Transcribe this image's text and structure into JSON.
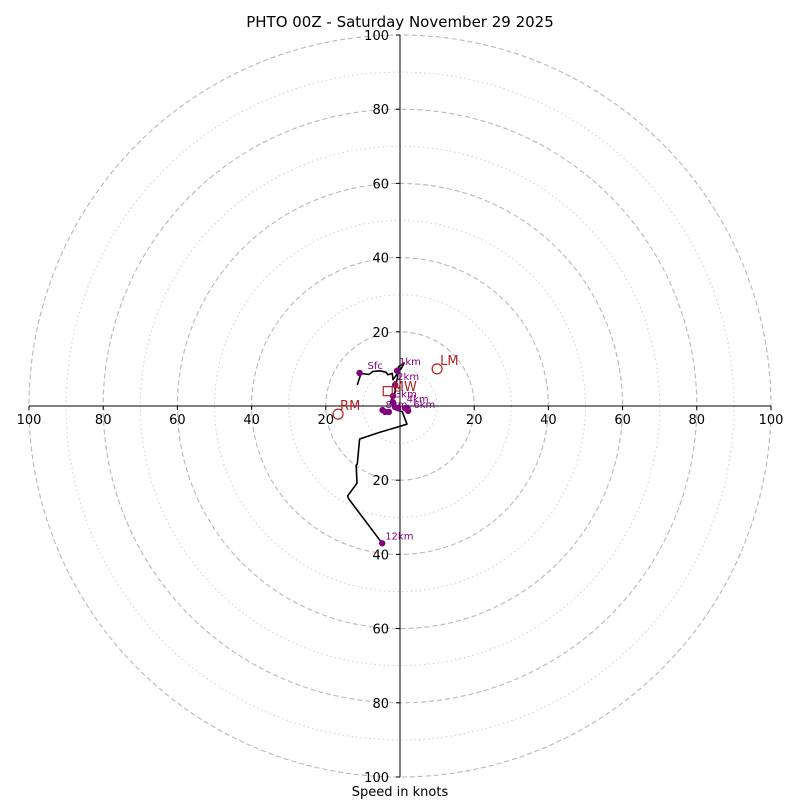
{
  "chart_data": {
    "type": "hodograph",
    "title": "PHTO 00Z - Saturday November 29 2025",
    "xlabel": "Speed in knots",
    "ylabel": "",
    "xlim": [
      -100,
      100
    ],
    "ylim": [
      -100,
      100
    ],
    "rings": {
      "major": [
        20,
        40,
        60,
        80,
        100
      ],
      "minor": [
        10,
        30,
        50,
        70,
        90
      ],
      "major_style": "dashed",
      "minor_style": "dotted"
    },
    "x_ticks": [
      {
        "value": -100,
        "label": "100"
      },
      {
        "value": -80,
        "label": "80"
      },
      {
        "value": -60,
        "label": "60"
      },
      {
        "value": -40,
        "label": "40"
      },
      {
        "value": -20,
        "label": "20"
      },
      {
        "value": 20,
        "label": "20"
      },
      {
        "value": 40,
        "label": "40"
      },
      {
        "value": 60,
        "label": "60"
      },
      {
        "value": 80,
        "label": "80"
      },
      {
        "value": 100,
        "label": "100"
      }
    ],
    "y_ticks": [
      {
        "value": 100,
        "label": "100"
      },
      {
        "value": 80,
        "label": "80"
      },
      {
        "value": 60,
        "label": "60"
      },
      {
        "value": 40,
        "label": "40"
      },
      {
        "value": 20,
        "label": "20"
      },
      {
        "value": -20,
        "label": "20"
      },
      {
        "value": -40,
        "label": "40"
      },
      {
        "value": -60,
        "label": "60"
      },
      {
        "value": -80,
        "label": "80"
      },
      {
        "value": -100,
        "label": "100"
      }
    ],
    "wind_trace": {
      "color": "#000000",
      "points": [
        [
          -11.5,
          5.7
        ],
        [
          -10.5,
          8.8
        ],
        [
          -8.4,
          8.5
        ],
        [
          -7.3,
          9.3
        ],
        [
          -5.4,
          9.5
        ],
        [
          -3.8,
          9.1
        ],
        [
          -3.2,
          8.4
        ],
        [
          -2.1,
          8.8
        ],
        [
          -1.9,
          7.1
        ],
        [
          0.5,
          10.4
        ],
        [
          1.1,
          11.6
        ],
        [
          -0.4,
          10.6
        ],
        [
          -0.7,
          7.5
        ],
        [
          -1.1,
          5.9
        ],
        [
          -1.3,
          4.0
        ],
        [
          -1.6,
          2.5
        ],
        [
          -2.4,
          1.6
        ],
        [
          -1.8,
          0.9
        ],
        [
          -1.9,
          -0.6
        ],
        [
          -0.8,
          -1.1
        ],
        [
          0.6,
          -1.5
        ],
        [
          1.9,
          -4.9
        ],
        [
          -2.1,
          -6.1
        ],
        [
          -5.2,
          -7.0
        ],
        [
          -10.9,
          -8.9
        ],
        [
          -11.5,
          -15.6
        ],
        [
          -11.8,
          -16.0
        ],
        [
          -11.6,
          -20.8
        ],
        [
          -14.1,
          -24.2
        ],
        [
          -13.9,
          -24.9
        ],
        [
          -4.8,
          -37.0
        ]
      ]
    },
    "height_markers": {
      "color": "#800080",
      "points": [
        {
          "u": -10.9,
          "v": 8.9,
          "label": "Sfc",
          "label_dx": 8,
          "label_dy": -4
        },
        {
          "u": -0.8,
          "v": 9.5,
          "label": "1km",
          "label_dx": 2,
          "label_dy": -6
        },
        {
          "u": -1.3,
          "v": 5.7,
          "label": "2km",
          "label_dx": 2,
          "label_dy": -5
        },
        {
          "u": -1.9,
          "v": 2.7,
          "label": "",
          "label_dx": 0,
          "label_dy": 0
        },
        {
          "u": -1.9,
          "v": 1.0,
          "label": "3km",
          "label_dx": 2,
          "label_dy": -5
        },
        {
          "u": -1.3,
          "v": -0.3,
          "label": "",
          "label_dx": 0,
          "label_dy": 0
        },
        {
          "u": 2.0,
          "v": -0.5,
          "label": "",
          "label_dx": 0,
          "label_dy": 0
        },
        {
          "u": 2.2,
          "v": -1.3,
          "label": "",
          "label_dx": 0,
          "label_dy": 0
        },
        {
          "u": -4.7,
          "v": -1.1,
          "label": "",
          "label_dx": 0,
          "label_dy": 0
        },
        {
          "u": -4.0,
          "v": -1.6,
          "label": "",
          "label_dx": 0,
          "label_dy": 0
        },
        {
          "u": -3.0,
          "v": -1.6,
          "label": "",
          "label_dx": 0,
          "label_dy": 0
        },
        {
          "u": -0.5,
          "v": -0.6,
          "label": "",
          "label_dx": 0,
          "label_dy": 0
        },
        {
          "u": 1.4,
          "v": -0.6,
          "label": "",
          "label_dx": 0,
          "label_dy": 0
        },
        {
          "u": -4.8,
          "v": -37.0,
          "label": "12km",
          "label_dx": 3,
          "label_dy": -4
        }
      ],
      "extra_labels": [
        {
          "u": 1.8,
          "v": 0.9,
          "text": "4km"
        },
        {
          "u": 3.6,
          "v": -0.5,
          "text": "6km"
        },
        {
          "u": -3.9,
          "v": -0.6,
          "text": "8km"
        }
      ]
    },
    "motion_markers": {
      "color": "#b22222",
      "points": [
        {
          "u": 10.0,
          "v": 10.0,
          "label": "LM",
          "shape": "circle",
          "label_dx": 3,
          "label_dy": -4
        },
        {
          "u": -16.7,
          "v": -2.2,
          "label": "RM",
          "shape": "circle",
          "label_dx": 2,
          "label_dy": -4
        },
        {
          "u": -3.3,
          "v": 4.0,
          "label": "MW",
          "shape": "square",
          "label_dx": 5,
          "label_dy": 0
        }
      ]
    }
  }
}
